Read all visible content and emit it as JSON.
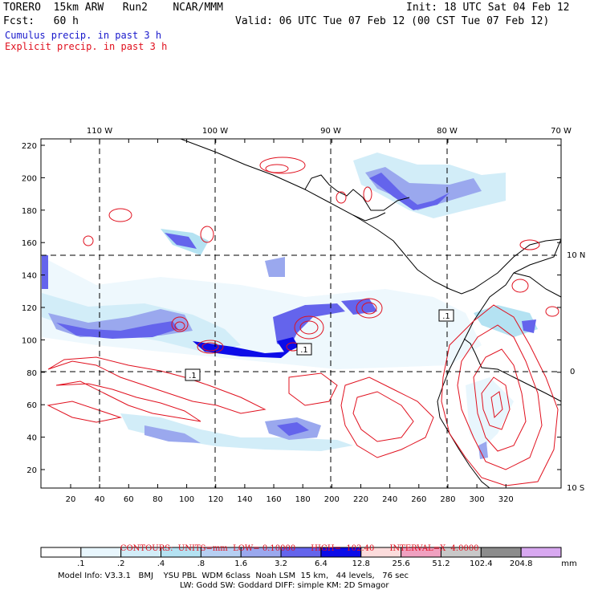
{
  "header": {
    "title_left": "TORERO  15km ARW   Run2    NCAR/MMM",
    "init": "Init: 18 UTC Sat 04 Feb 12",
    "fcst": "Fcst:   60 h",
    "valid": "Valid: 06 UTC Tue 07 Feb 12 (00 CST Tue 07 Feb 12)",
    "line_cumulus": "Cumulus precip. in past 3 h",
    "line_explicit": "Explicit precip. in past 3 h"
  },
  "top_lon_labels": [
    "110 W",
    "100 W",
    "90 W",
    "80 W",
    "70 W"
  ],
  "right_lat_labels": [
    "10 N",
    "0",
    "10 S"
  ],
  "y_ticks": [
    "220",
    "200",
    "180",
    "160",
    "140",
    "120",
    "100",
    "80",
    "60",
    "40",
    "20"
  ],
  "x_ticks": [
    "20",
    "40",
    "60",
    "80",
    "100",
    "120",
    "140",
    "160",
    "180",
    "200",
    "220",
    "240",
    "260",
    "280",
    "300",
    "320"
  ],
  "box_labels": [
    ".1",
    ".1",
    ".1",
    ".1"
  ],
  "contours_line": {
    "label": "CONTOURS:  UNITS=mm  LOW= 0.10000",
    "high": "HIGH=  102.40",
    "interval": "INTERVAL=X  4.0000"
  },
  "colorbar": {
    "labels": [
      ".1",
      ".2",
      ".4",
      ".8",
      "1.6",
      "3.2",
      "6.4",
      "12.8",
      "25.6",
      "51.2",
      "102.4",
      "204.8"
    ],
    "colors": [
      "#ffffff",
      "#e8f6fd",
      "#d2edf8",
      "#b4e2f2",
      "#b6cff2",
      "#9aa8ee",
      "#6464ec",
      "#0c0ce8",
      "#fcdcdc",
      "#f0a0c0",
      "#c8c8c8",
      "#8c8c8c",
      "#d8a8f0"
    ],
    "unit": "mm"
  },
  "model_info": {
    "line1": "Model Info: V3.3.1   BMJ    YSU PBL  WDM 6class  Noah LSM  15 km,   44 levels,   76 sec",
    "line2": "LW: Godd SW: Goddard DIFF: simple KM: 2D Smagor"
  }
}
